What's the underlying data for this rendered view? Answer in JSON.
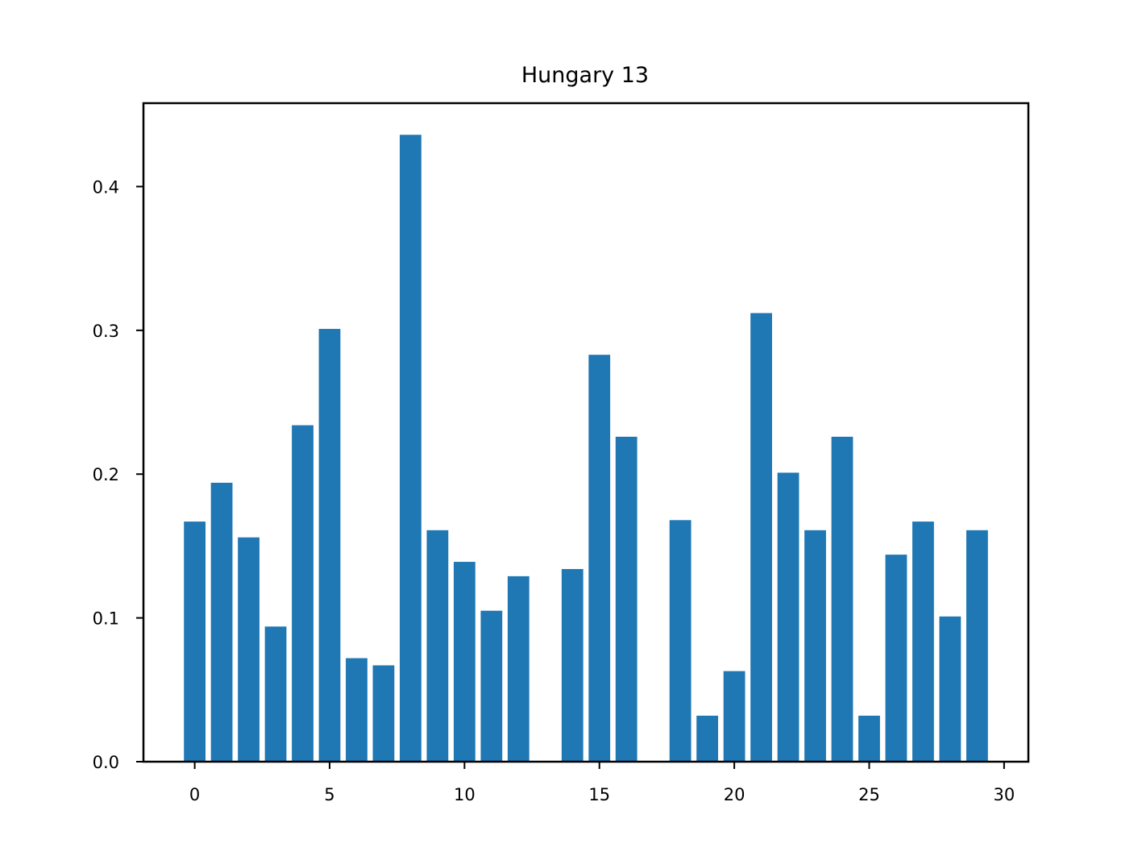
{
  "chart_data": {
    "type": "bar",
    "title": "Hungary 13",
    "xlabel": "",
    "ylabel": "",
    "color": "#1f77b4",
    "x": [
      0,
      1,
      2,
      3,
      4,
      5,
      6,
      7,
      8,
      9,
      10,
      11,
      12,
      13,
      14,
      15,
      16,
      17,
      18,
      19,
      20,
      21,
      22,
      23,
      24,
      25,
      26,
      27,
      28,
      29
    ],
    "values": [
      0.167,
      0.194,
      0.156,
      0.094,
      0.234,
      0.301,
      0.072,
      0.067,
      0.436,
      0.161,
      0.139,
      0.105,
      0.129,
      0.0,
      0.134,
      0.283,
      0.226,
      0.0,
      0.168,
      0.032,
      0.063,
      0.312,
      0.201,
      0.161,
      0.226,
      0.032,
      0.144,
      0.167,
      0.101,
      0.161
    ],
    "xlim": [
      -1.9,
      30.9
    ],
    "ylim": [
      0.0,
      0.458
    ],
    "xticks": [
      0,
      5,
      10,
      15,
      20,
      25,
      30
    ],
    "yticks": [
      0.0,
      0.1,
      0.2,
      0.3,
      0.4
    ],
    "xtick_labels": [
      "0",
      "5",
      "10",
      "15",
      "20",
      "25",
      "30"
    ],
    "ytick_labels": [
      "0.0",
      "0.1",
      "0.2",
      "0.3",
      "0.4"
    ],
    "grid": false,
    "legend": "none"
  }
}
